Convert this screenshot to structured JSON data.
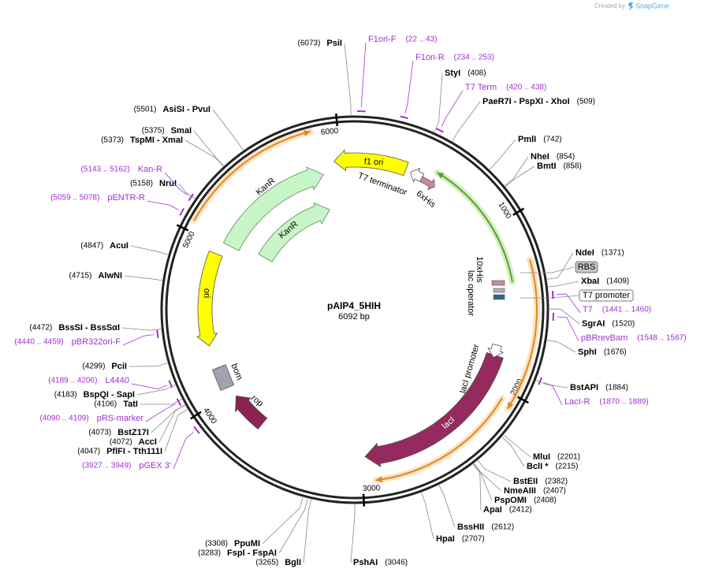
{
  "header": {
    "created_by": "Created by",
    "logo": "SnapGene"
  },
  "plasmid": {
    "name": "pAIP4_5HIH",
    "length": {
      "value": 6092,
      "label": "6092 bp"
    },
    "ticks": [
      1000,
      2000,
      3000,
      4000,
      5000,
      6000
    ]
  },
  "sites": [
    {
      "name": "PsiI",
      "position": {
        "value": 6073,
        "label": "(6073)"
      }
    },
    {
      "name": "StyI",
      "position": {
        "value": 408,
        "label": "(408)"
      }
    },
    {
      "name": "PaeR7I - PspXI - XhoI",
      "position": {
        "value": 509,
        "label": "(509)"
      }
    },
    {
      "name": "PmlI",
      "position": {
        "value": 742,
        "label": "(742)"
      }
    },
    {
      "name": "NheI",
      "position": {
        "value": 854,
        "label": "(854)"
      }
    },
    {
      "name": "BmtI",
      "position": {
        "value": 858,
        "label": "(858)"
      }
    },
    {
      "name": "NdeI",
      "position": {
        "value": 1371,
        "label": "(1371)"
      }
    },
    {
      "name": "XbaI",
      "position": {
        "value": 1409,
        "label": "(1409)"
      }
    },
    {
      "name": "SgrAI",
      "position": {
        "value": 1520,
        "label": "(1520)"
      }
    },
    {
      "name": "SphI",
      "position": {
        "value": 1676,
        "label": "(1676)"
      }
    },
    {
      "name": "BstAPI",
      "position": {
        "value": 1884,
        "label": "(1884)"
      }
    },
    {
      "name": "MluI",
      "position": {
        "value": 2201,
        "label": "(2201)"
      }
    },
    {
      "name": "BclI *",
      "position": {
        "value": 2215,
        "label": "(2215)"
      }
    },
    {
      "name": "BstEII",
      "position": {
        "value": 2382,
        "label": "(2382)"
      }
    },
    {
      "name": "NmeAIII",
      "position": {
        "value": 2407,
        "label": "(2407)"
      }
    },
    {
      "name": "PspOMI",
      "position": {
        "value": 2408,
        "label": "(2408)"
      }
    },
    {
      "name": "ApaI",
      "position": {
        "value": 2412,
        "label": "(2412)"
      }
    },
    {
      "name": "BssHII",
      "position": {
        "value": 2612,
        "label": "(2612)"
      }
    },
    {
      "name": "HpaI",
      "position": {
        "value": 2707,
        "label": "(2707)"
      }
    },
    {
      "name": "PshAI",
      "position": {
        "value": 3046,
        "label": "(3046)"
      }
    },
    {
      "name": "BglI",
      "position": {
        "value": 3265,
        "label": "(3265)"
      }
    },
    {
      "name": "FspI - FspAI",
      "position": {
        "value": 3283,
        "label": "(3283)"
      }
    },
    {
      "name": "PpuMI",
      "position": {
        "value": 3308,
        "label": "(3308)"
      }
    },
    {
      "name": "PflFI - Tth111I",
      "position": {
        "value": 4047,
        "label": "(4047)"
      }
    },
    {
      "name": "AccI",
      "position": {
        "value": 4072,
        "label": "(4072)"
      }
    },
    {
      "name": "BstZ17I",
      "position": {
        "value": 4073,
        "label": "(4073)"
      }
    },
    {
      "name": "TatI",
      "position": {
        "value": 4106,
        "label": "(4106)"
      }
    },
    {
      "name": "BspQI - SapI",
      "position": {
        "value": 4183,
        "label": "(4183)"
      }
    },
    {
      "name": "PciI",
      "position": {
        "value": 4299,
        "label": "(4299)"
      }
    },
    {
      "name": "BssSI - BssSαI",
      "position": {
        "value": 4472,
        "label": "(4472)"
      }
    },
    {
      "name": "AlwNI",
      "position": {
        "value": 4715,
        "label": "(4715)"
      }
    },
    {
      "name": "AcuI",
      "position": {
        "value": 4847,
        "label": "(4847)"
      }
    },
    {
      "name": "NruI",
      "position": {
        "value": 5158,
        "label": "(5158)"
      }
    },
    {
      "name": "TspMI - XmaI",
      "position": {
        "value": 5373,
        "label": "(5373)"
      }
    },
    {
      "name": "SmaI",
      "position": {
        "value": 5375,
        "label": "(5375)"
      }
    },
    {
      "name": "AsiSI - PvuI",
      "position": {
        "value": 5501,
        "label": "(5501)"
      }
    }
  ],
  "primers": [
    {
      "name": "F1ori-F",
      "range": "(22 .. 43)"
    },
    {
      "name": "F1ori-R",
      "range": "(234 .. 253)"
    },
    {
      "name": "T7 Term",
      "range": "(420 .. 438)"
    },
    {
      "name": "T7",
      "range": "(1441 .. 1460)"
    },
    {
      "name": "pBRrevBam",
      "range": "(1548 .. 1567)"
    },
    {
      "name": "LacI-R",
      "range": "(1870 .. 1889)"
    },
    {
      "name": "pGEX 3'",
      "range": "(3927 .. 3949)"
    },
    {
      "name": "pRS-marker",
      "range": "(4090 .. 4109)"
    },
    {
      "name": "L4440",
      "range": "(4189 .. 4206)"
    },
    {
      "name": "pBR322ori-F",
      "range": "(4440 .. 4459)"
    },
    {
      "name": "pENTR-R",
      "range": "(5059 .. 5078)"
    },
    {
      "name": "Kan-R",
      "range": "(5143 .. 5162)"
    }
  ],
  "features": [
    {
      "name": "f1 ori"
    },
    {
      "name": "T7 terminator"
    },
    {
      "name": "6xHis"
    },
    {
      "name": "KanR"
    },
    {
      "name": "KanR"
    },
    {
      "name": "ori"
    },
    {
      "name": "bom"
    },
    {
      "name": "rop"
    },
    {
      "name": "lacI"
    },
    {
      "name": "lacI promoter"
    },
    {
      "name": "10xHis"
    },
    {
      "name": "lac operator"
    },
    {
      "name": "RBS"
    },
    {
      "name": "T7 promoter"
    }
  ]
}
